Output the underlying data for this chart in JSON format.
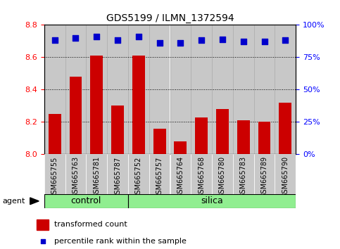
{
  "title": "GDS5199 / ILMN_1372594",
  "samples": [
    "GSM665755",
    "GSM665763",
    "GSM665781",
    "GSM665787",
    "GSM665752",
    "GSM665757",
    "GSM665764",
    "GSM665768",
    "GSM665780",
    "GSM665783",
    "GSM665789",
    "GSM665790"
  ],
  "bar_values": [
    8.25,
    8.48,
    8.61,
    8.3,
    8.61,
    8.16,
    8.08,
    8.23,
    8.28,
    8.21,
    8.2,
    8.32
  ],
  "percentile_values": [
    88,
    90,
    91,
    88,
    91,
    86,
    86,
    88,
    89,
    87,
    87,
    88
  ],
  "bar_color": "#cc0000",
  "dot_color": "#0000cc",
  "ylim_left": [
    8.0,
    8.8
  ],
  "ylim_right": [
    0,
    100
  ],
  "yticks_left": [
    8.0,
    8.2,
    8.4,
    8.6,
    8.8
  ],
  "yticks_right": [
    0,
    25,
    50,
    75,
    100
  ],
  "ytick_labels_right": [
    "0%",
    "25%",
    "50%",
    "75%",
    "100%"
  ],
  "control_count": 4,
  "silica_count": 8,
  "group_color": "#90ee90",
  "agent_label": "agent",
  "legend_bar_label": "transformed count",
  "legend_dot_label": "percentile rank within the sample",
  "bar_width": 0.6,
  "dot_size": 40,
  "dot_marker": "s",
  "col_bg_color": "#c8c8c8",
  "col_border_color": "#aaaaaa"
}
